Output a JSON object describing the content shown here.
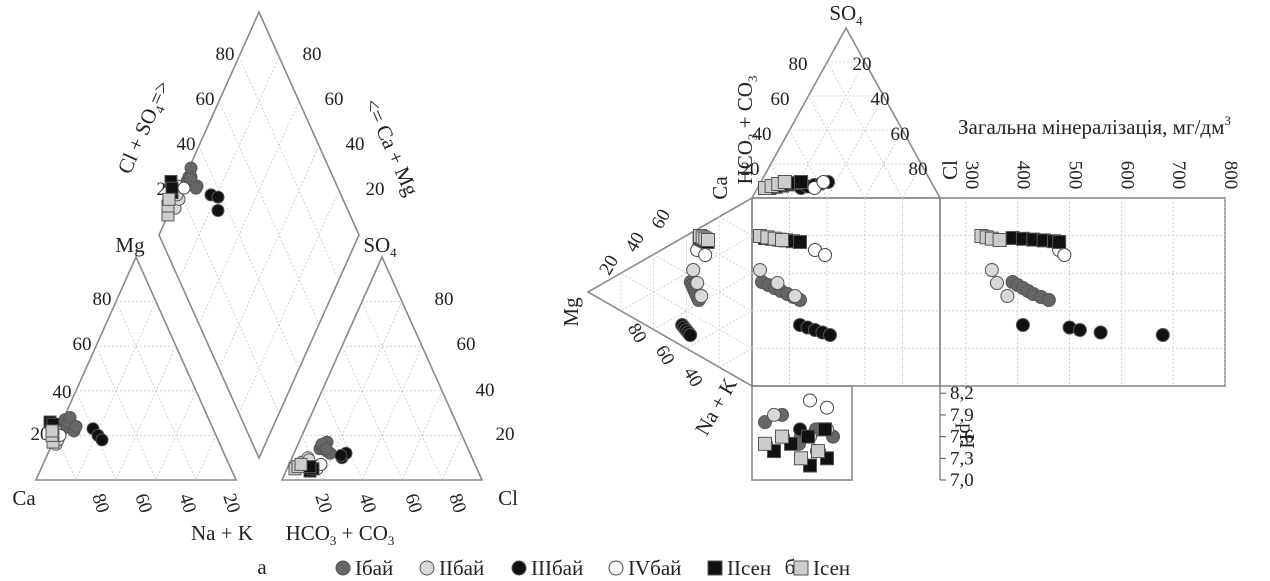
{
  "panel_a": {
    "letter": "а",
    "corner_labels": {
      "ca": "Ca",
      "mg": "Mg",
      "na_k": "Na + K",
      "hco3_co3": "HCO",
      "hco3_sub": "3",
      "co3_part": " + CO",
      "co3_sub": "3",
      "cl": "Cl",
      "so4": "SO",
      "so4_sub": "4"
    },
    "diamond_labels": {
      "cl_so4": "Cl + SO",
      "cl_so4_sub": "4",
      "cl_so4_arrow": "=>",
      "ca_mg_arrow": "<=",
      "ca_mg": " Ca + Mg"
    },
    "ticks": {
      "t20": "20",
      "t40": "40",
      "t60": "60",
      "t80": "80"
    }
  },
  "panel_b": {
    "letter": "б",
    "labels": {
      "so4": "SO",
      "so4_sub": "4",
      "hco3": "HCO",
      "hco3_sub": "3",
      "co3": " + CO",
      "co3_sub": "3",
      "ca": "Ca",
      "cl": "Cl",
      "mg": "Mg",
      "na_k": "Na + K",
      "ph": "pH"
    },
    "mineralization_axis": {
      "title": "Загальна мінералізація, мг/дм",
      "title_sup": "3",
      "ticks": [
        "300",
        "400",
        "500",
        "600",
        "700",
        "800"
      ]
    },
    "ph_axis": {
      "ticks": [
        "8,2",
        "7,9",
        "7,6",
        "7,3",
        "7,0"
      ]
    },
    "ticks": {
      "t20": "20",
      "t40": "40",
      "t60": "60",
      "t80": "80"
    }
  },
  "legend": [
    {
      "label": "Iбай",
      "marker": "circle",
      "fill": "#666666"
    },
    {
      "label": "IIбай",
      "marker": "circle",
      "fill": "#d9d9d9"
    },
    {
      "label": "IIIбай",
      "marker": "circle",
      "fill": "#111111"
    },
    {
      "label": "IVбай",
      "marker": "circle",
      "fill": "#ffffff"
    },
    {
      "label": "IIсен",
      "marker": "square",
      "fill": "#111111"
    },
    {
      "label": "Iсен",
      "marker": "square",
      "fill": "#cccccc"
    }
  ],
  "chart_data": [
    {
      "type": "scatter",
      "subtype": "piper-diagram",
      "panel": "а",
      "series": [
        {
          "name": "Iбай",
          "cation": {
            "Ca": [
              75,
              73,
              72,
              71,
              70,
              69,
              68
            ],
            "Mg": [
              23,
              25,
              27,
              26,
              22,
              28,
              24
            ]
          },
          "anion": {
            "Cl": [
              12,
              13,
              14,
              16,
              18,
              12,
              15
            ],
            "SO4": [
              14,
              15,
              17,
              13,
              12,
              16,
              14
            ]
          }
        },
        {
          "name": "IIбай",
          "cation": {
            "Ca": [
              82,
              80,
              79
            ],
            "Mg": [
              16,
              18,
              21
            ]
          },
          "anion": {
            "Cl": [
              6,
              8,
              9
            ],
            "SO4": [
              8,
              10,
              9
            ]
          }
        },
        {
          "name": "IIIбай",
          "cation": {
            "Ca": [
              60,
              59,
              58
            ],
            "Mg": [
              23,
              20,
              18
            ]
          },
          "anion": {
            "Cl": [
              25,
              26,
              24
            ],
            "SO4": [
              10,
              12,
              11
            ]
          }
        },
        {
          "name": "IVбай",
          "cation": {
            "Ca": [
              79,
              78
            ],
            "Mg": [
              23,
              20
            ]
          },
          "anion": {
            "Cl": [
              15,
              16
            ],
            "SO4": [
              5,
              7
            ]
          }
        },
        {
          "name": "IIсен",
          "cation": {
            "Ca": [
              80,
              80,
              79
            ],
            "Mg": [
              23,
              26,
              25
            ]
          },
          "anion": {
            "Cl": [
              12,
              13,
              11
            ],
            "SO4": [
              4,
              5,
              6
            ]
          }
        },
        {
          "name": "Iсен",
          "cation": {
            "Ca": [
              83,
              82,
              81
            ],
            "Mg": [
              17,
              20,
              22
            ]
          },
          "anion": {
            "Cl": [
              4,
              5,
              6
            ],
            "SO4": [
              5,
              6,
              7
            ]
          }
        }
      ]
    },
    {
      "type": "scatter",
      "subtype": "durov-diagram",
      "panel": "б",
      "x_axis": {
        "label": "Загальна мінералізація, мг/дм3",
        "range": [
          250,
          800
        ]
      },
      "ph_range": [
        7.0,
        8.3
      ],
      "series": [
        {
          "name": "Iбай",
          "tds": [
            390,
            400,
            410,
            420,
            430,
            445,
            460
          ],
          "ph": [
            7.6,
            7.7,
            7.8,
            7.9,
            7.5,
            7.7,
            7.6
          ]
        },
        {
          "name": "IIбай",
          "tds": [
            350,
            360,
            380
          ],
          "ph": [
            7.6,
            7.7,
            7.9
          ]
        },
        {
          "name": "IIIбай",
          "tds": [
            410,
            500,
            520,
            560,
            680
          ],
          "ph": [
            7.4,
            7.5,
            7.6,
            7.7,
            7.4
          ]
        },
        {
          "name": "IVбай",
          "tds": [
            480,
            490
          ],
          "ph": [
            8.1,
            8.0
          ]
        },
        {
          "name": "IIсен",
          "tds": [
            390,
            410,
            430,
            450,
            470,
            480
          ],
          "ph": [
            7.2,
            7.3,
            7.4,
            7.5,
            7.6,
            7.7
          ]
        },
        {
          "name": "Iсен",
          "tds": [
            330,
            340,
            350,
            365
          ],
          "ph": [
            7.3,
            7.4,
            7.5,
            7.6
          ]
        }
      ]
    }
  ]
}
